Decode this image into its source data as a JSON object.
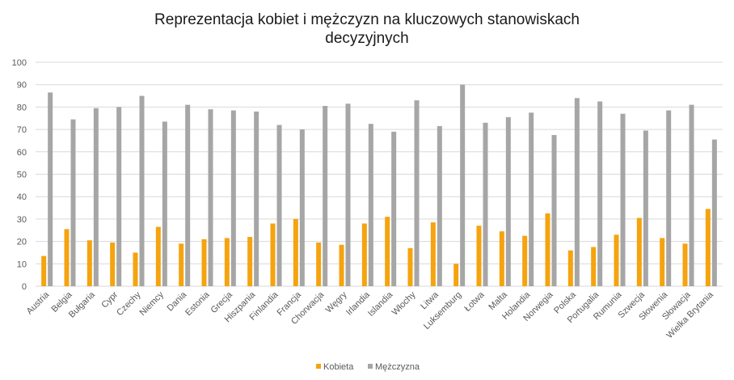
{
  "chart_data": {
    "type": "bar",
    "title_lines": [
      "Reprezentacja kobiet i mężczyzn na kluczowych stanowiskach",
      "decyzyjnych"
    ],
    "categories": [
      "Austria",
      "Belgia",
      "Bułgaria",
      "Cypr",
      "Czechy",
      "Niemcy",
      "Dania",
      "Estonia",
      "Grecja",
      "Hiszpania",
      "Finlandia",
      "Francja",
      "Chorwacja",
      "Węgry",
      "Irlandia",
      "Islandia",
      "Włochy",
      "Litwa",
      "Luksemburg",
      "Łotwa",
      "Malta",
      "Holandia",
      "Norwegia",
      "Polska",
      "Portugalia",
      "Rumunia",
      "Szwecja",
      "Słowenia",
      "Słowacja",
      "Wielka Brytania"
    ],
    "series": [
      {
        "name": "Kobieta",
        "color": "#f5a30f",
        "values": [
          13.5,
          25.5,
          20.5,
          19.5,
          15,
          26.5,
          19,
          21,
          21.5,
          22,
          28,
          30,
          19.5,
          18.5,
          28,
          31,
          17,
          28.5,
          10,
          27,
          24.5,
          22.5,
          32.5,
          16,
          17.5,
          23,
          30.5,
          21.5,
          19,
          34.5
        ]
      },
      {
        "name": "Mężczyzna",
        "color": "#a6a6a6",
        "values": [
          86.5,
          74.5,
          79.5,
          80,
          85,
          73.5,
          81,
          79,
          78.5,
          78,
          72,
          70,
          80.5,
          81.5,
          72.5,
          69,
          83,
          71.5,
          90,
          73,
          75.5,
          77.5,
          67.5,
          84,
          82.5,
          77,
          69.5,
          78.5,
          81,
          65.5
        ]
      }
    ],
    "yticks": [
      "0",
      "10",
      "20",
      "30",
      "40",
      "50",
      "60",
      "70",
      "80",
      "90",
      "100"
    ],
    "ylim": [
      0,
      100
    ],
    "grid": true,
    "legend_position": "bottom"
  }
}
